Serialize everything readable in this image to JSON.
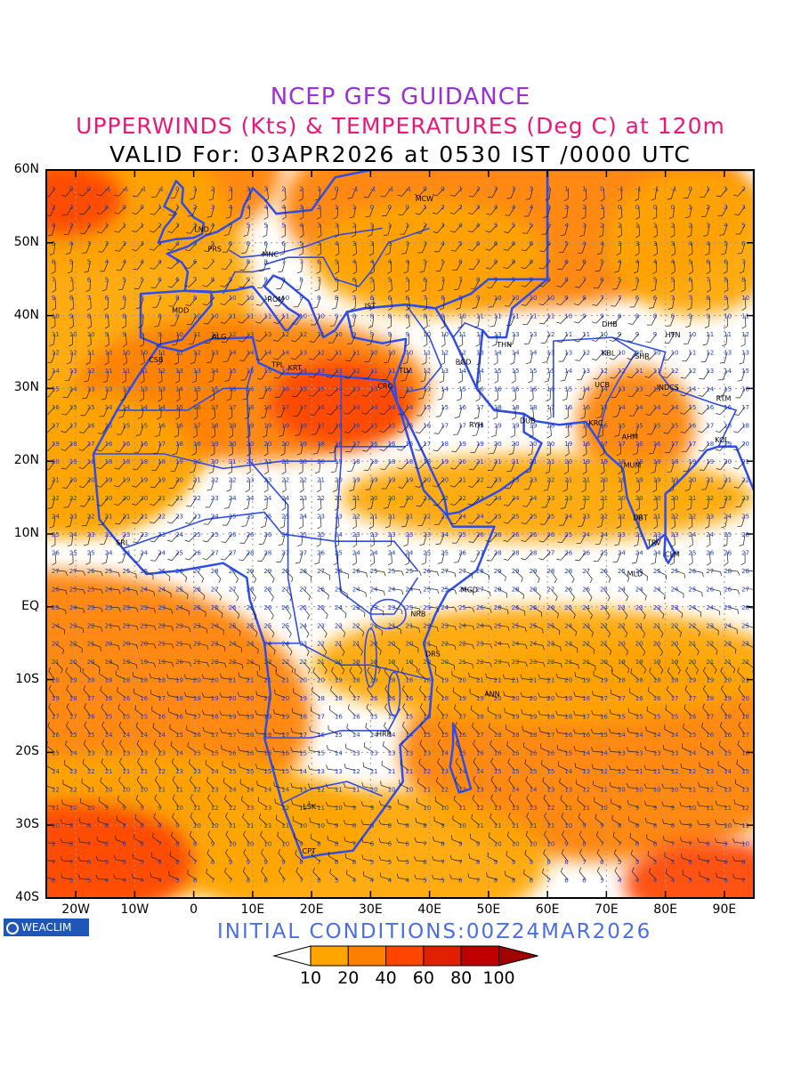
{
  "titles": {
    "line1": "NCEP GFS GUIDANCE",
    "line2": "UPPERWINDS (Kts) & TEMPERATURES (Deg C) at 120m",
    "line3": "VALID For: 03APR2026 at 0530 IST /0000 UTC"
  },
  "initial_conditions": "INITIAL CONDITIONS:00Z24MAR2026",
  "logo": "WEACLIM",
  "lat_labels": [
    "60N",
    "50N",
    "40N",
    "30N",
    "20N",
    "10N",
    "EQ",
    "10S",
    "20S",
    "30S",
    "40S"
  ],
  "lon_labels": [
    "20W",
    "10W",
    "0",
    "10E",
    "20E",
    "30E",
    "40E",
    "50E",
    "60E",
    "70E",
    "80E",
    "90E"
  ],
  "colorbar": {
    "labels": [
      "10",
      "20",
      "40",
      "60",
      "80",
      "100"
    ],
    "colors": [
      "#ffffff",
      "#ffa500",
      "#ff7f00",
      "#ff4500",
      "#e02000",
      "#c00000",
      "#a00000"
    ]
  },
  "stations": [
    {
      "code": "MCW",
      "lon": 37.6,
      "lat": 55.7
    },
    {
      "code": "LND",
      "lon": 0.1,
      "lat": 51.5
    },
    {
      "code": "PRS",
      "lon": 2.4,
      "lat": 48.8
    },
    {
      "code": "MNC",
      "lon": 11.6,
      "lat": 48.1
    },
    {
      "code": "ROM",
      "lon": 12.5,
      "lat": 41.9
    },
    {
      "code": "MDD",
      "lon": -3.7,
      "lat": 40.4
    },
    {
      "code": "IST",
      "lon": 29.0,
      "lat": 41.0
    },
    {
      "code": "ALG",
      "lon": 3.1,
      "lat": 36.8
    },
    {
      "code": "CSB",
      "lon": -7.6,
      "lat": 33.6
    },
    {
      "code": "TPL",
      "lon": 13.2,
      "lat": 32.9
    },
    {
      "code": "KRT",
      "lon": 16.0,
      "lat": 32.5
    },
    {
      "code": "CRO",
      "lon": 31.2,
      "lat": 30.0
    },
    {
      "code": "TLV",
      "lon": 34.8,
      "lat": 32.1
    },
    {
      "code": "BGD",
      "lon": 44.4,
      "lat": 33.3
    },
    {
      "code": "THN",
      "lon": 51.4,
      "lat": 35.7
    },
    {
      "code": "RYH",
      "lon": 46.7,
      "lat": 24.7
    },
    {
      "code": "DUB",
      "lon": 55.3,
      "lat": 25.2
    },
    {
      "code": "DHB",
      "lon": 69.2,
      "lat": 38.5
    },
    {
      "code": "HTN",
      "lon": 80.0,
      "lat": 37.0
    },
    {
      "code": "KBL",
      "lon": 69.2,
      "lat": 34.5
    },
    {
      "code": "SHR",
      "lon": 74.8,
      "lat": 34.1
    },
    {
      "code": "UCB",
      "lon": 68.0,
      "lat": 30.2
    },
    {
      "code": "INDCS",
      "lon": 78.5,
      "lat": 29.8
    },
    {
      "code": "RTM",
      "lon": 88.6,
      "lat": 28.3
    },
    {
      "code": "KRC",
      "lon": 67.0,
      "lat": 24.9
    },
    {
      "code": "AHM",
      "lon": 72.6,
      "lat": 23.0
    },
    {
      "code": "KOL",
      "lon": 88.4,
      "lat": 22.6
    },
    {
      "code": "MUM",
      "lon": 72.9,
      "lat": 19.1
    },
    {
      "code": "DBT",
      "lon": 74.5,
      "lat": 11.9
    },
    {
      "code": "TRV",
      "lon": 76.9,
      "lat": 8.5
    },
    {
      "code": "CLM",
      "lon": 79.9,
      "lat": 6.9
    },
    {
      "code": "MLD",
      "lon": 73.5,
      "lat": 4.2
    },
    {
      "code": "SRL",
      "lon": -13.2,
      "lat": 8.5
    },
    {
      "code": "MGD",
      "lon": 45.3,
      "lat": 2.0
    },
    {
      "code": "NRB",
      "lon": 36.8,
      "lat": -1.3
    },
    {
      "code": "DRS",
      "lon": 39.3,
      "lat": -6.8
    },
    {
      "code": "ANN",
      "lon": 49.3,
      "lat": -12.3
    },
    {
      "code": "HRR",
      "lon": 31.0,
      "lat": -17.8
    },
    {
      "code": "LSK",
      "lon": 18.5,
      "lat": -27.8
    },
    {
      "code": "CPT",
      "lon": 18.4,
      "lat": -33.9
    }
  ]
}
